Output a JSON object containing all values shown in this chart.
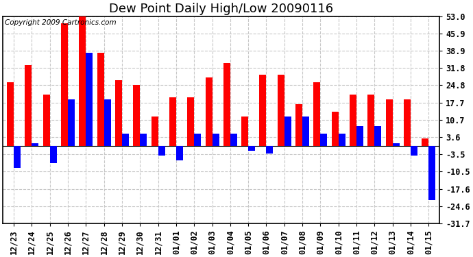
{
  "title": "Dew Point Daily High/Low 20090116",
  "copyright": "Copyright 2009 Cartronics.com",
  "dates": [
    "12/23",
    "12/24",
    "12/25",
    "12/26",
    "12/27",
    "12/28",
    "12/29",
    "12/30",
    "12/31",
    "01/01",
    "01/02",
    "01/03",
    "01/04",
    "01/05",
    "01/06",
    "01/07",
    "01/08",
    "01/09",
    "01/10",
    "01/11",
    "01/12",
    "01/13",
    "01/14",
    "01/15"
  ],
  "highs": [
    26,
    33,
    21,
    50,
    53,
    38,
    27,
    25,
    12,
    20,
    20,
    28,
    34,
    12,
    29,
    29,
    17,
    26,
    14,
    21,
    21,
    19,
    19,
    3
  ],
  "lows": [
    -9,
    1,
    -7,
    19,
    38,
    19,
    5,
    5,
    -4,
    -6,
    5,
    5,
    5,
    -2,
    -3,
    12,
    12,
    5,
    5,
    8,
    8,
    1,
    -4,
    -22
  ],
  "bar_width": 0.38,
  "high_color": "#FF0000",
  "low_color": "#0000FF",
  "background_color": "#FFFFFF",
  "plot_background": "#FFFFFF",
  "grid_color": "#C8C8C8",
  "ylim": [
    -31.7,
    53.0
  ],
  "yticks": [
    53.0,
    45.9,
    38.9,
    31.8,
    24.8,
    17.7,
    10.7,
    3.6,
    -3.5,
    -10.5,
    -17.6,
    -24.6,
    -31.7
  ],
  "title_fontsize": 13,
  "tick_fontsize": 8.5,
  "copyright_fontsize": 7.5
}
